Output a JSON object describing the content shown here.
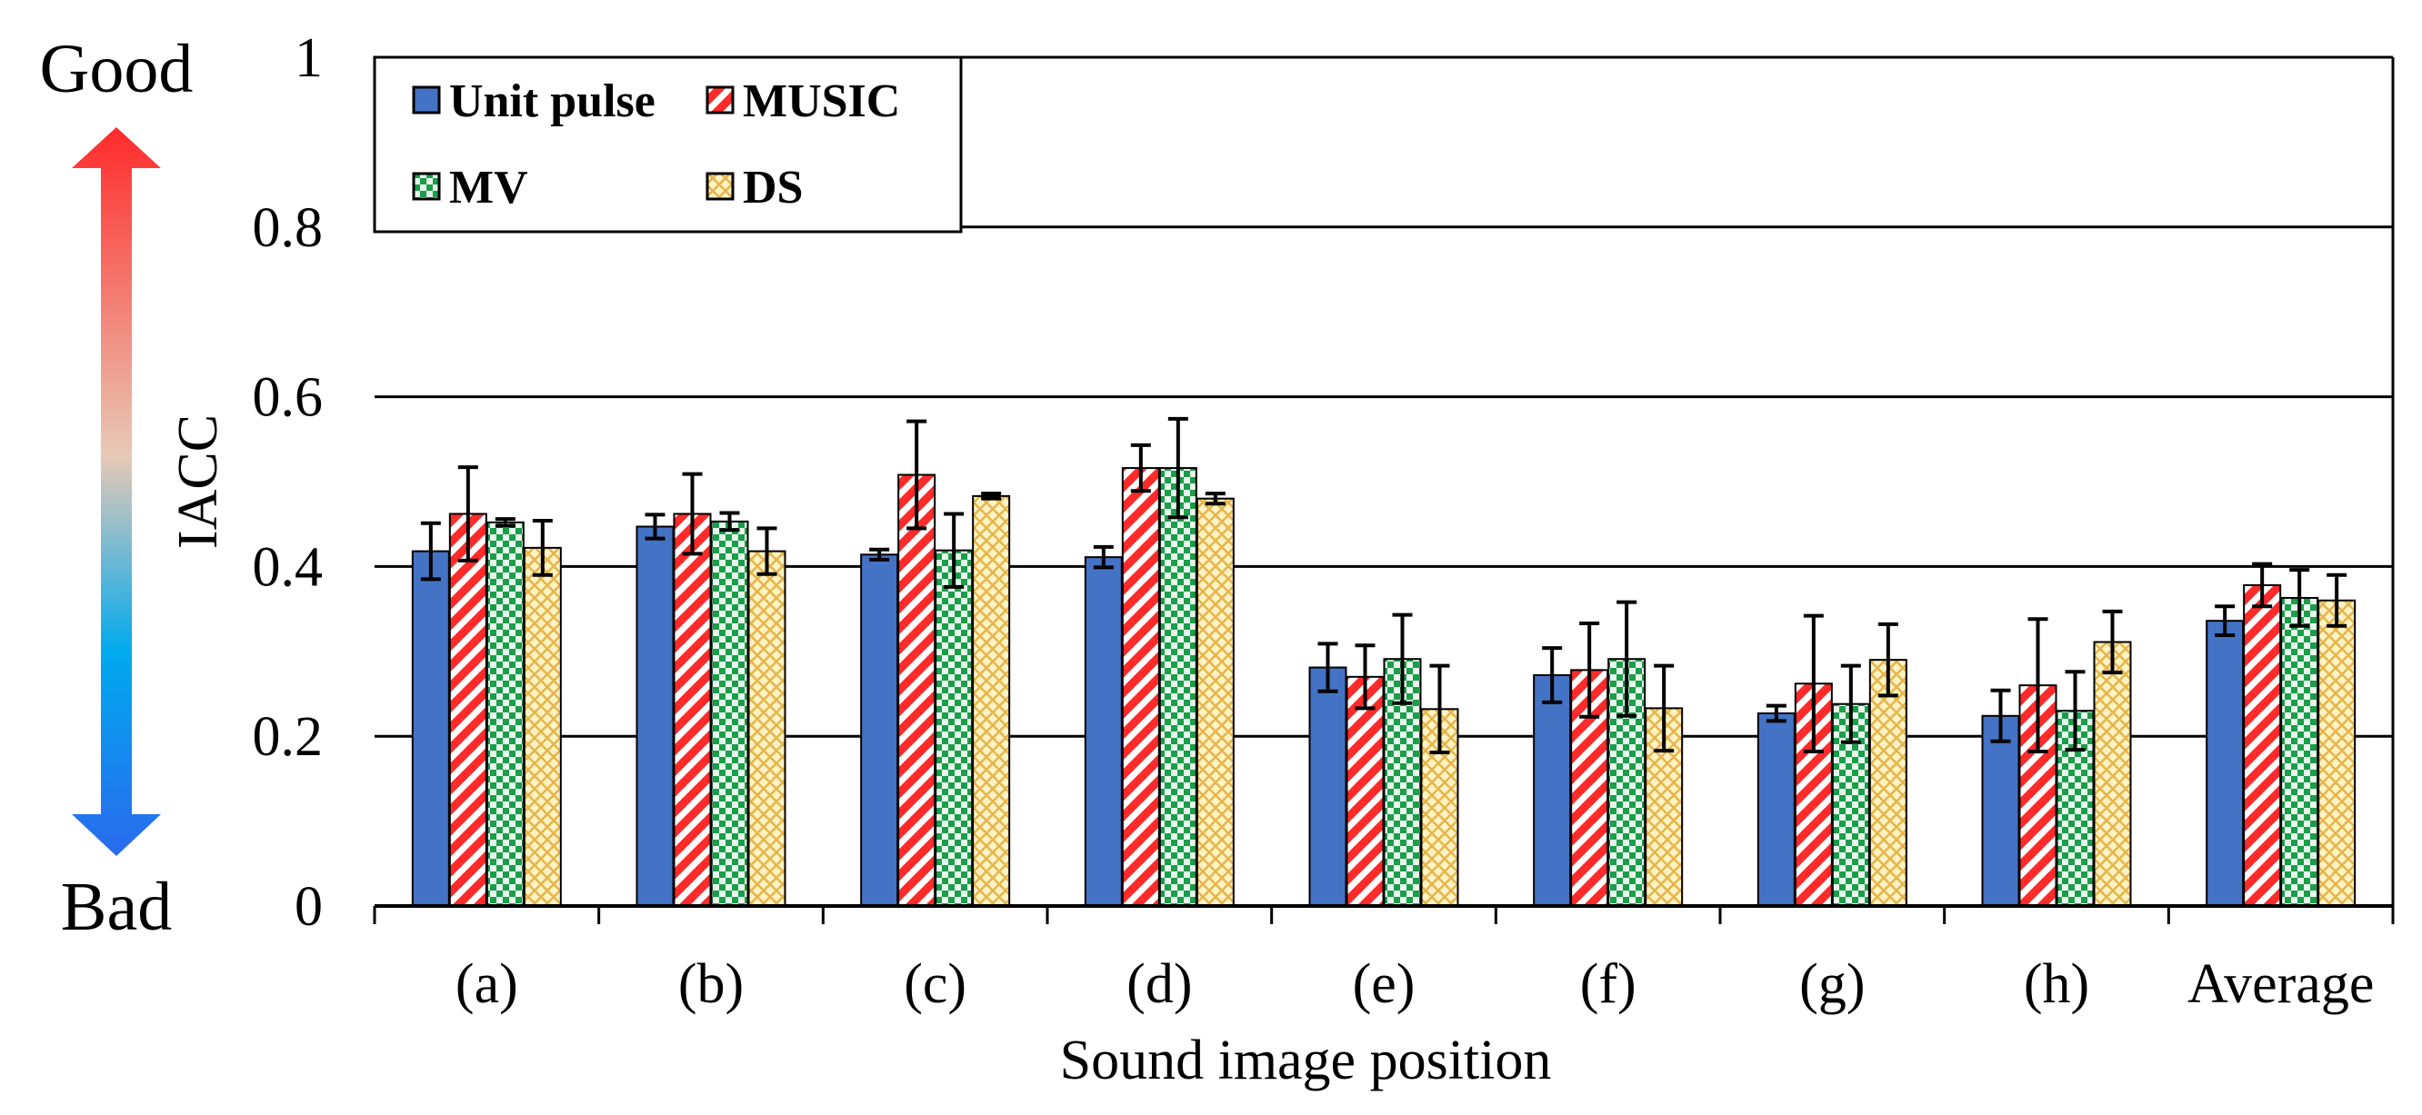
{
  "indicator": {
    "top_label": "Good",
    "bottom_label": "Bad",
    "colors": {
      "good": "#ff2a2a",
      "mid": "#e8c9b6",
      "low": "#00aaee",
      "bad": "#2a6aee"
    }
  },
  "legend_labels": [
    "Unit pulse",
    "MUSIC",
    "MV",
    "DS"
  ],
  "chart_data": {
    "type": "bar",
    "title": "",
    "xlabel": "Sound image position",
    "ylabel": "IACC",
    "ylim": [
      0,
      1
    ],
    "yticks": [
      0,
      0.2,
      0.4,
      0.6,
      0.8,
      1
    ],
    "ytick_labels": [
      "0",
      "0.2",
      "0.4",
      "0.6",
      "0.8",
      "1"
    ],
    "grid": true,
    "legend_position": "top-left",
    "categories": [
      "(a)",
      "(b)",
      "(c)",
      "(d)",
      "(e)",
      "(f)",
      "(g)",
      "(h)",
      "Average"
    ],
    "series": [
      {
        "name": "Unit pulse",
        "color": "#4472c4",
        "pattern": "solid",
        "values": [
          0.418,
          0.447,
          0.414,
          0.411,
          0.281,
          0.272,
          0.227,
          0.224,
          0.336
        ],
        "errors": [
          0.033,
          0.014,
          0.006,
          0.012,
          0.028,
          0.032,
          0.009,
          0.03,
          0.017
        ]
      },
      {
        "name": "MUSIC",
        "color": "#ff2a2a",
        "pattern": "diagonal-stripe",
        "values": [
          0.462,
          0.462,
          0.508,
          0.516,
          0.27,
          0.278,
          0.262,
          0.26,
          0.378
        ],
        "errors": [
          0.055,
          0.047,
          0.063,
          0.027,
          0.037,
          0.055,
          0.08,
          0.078,
          0.025
        ]
      },
      {
        "name": "MV",
        "color": "#1a9e4a",
        "pattern": "checker",
        "values": [
          0.452,
          0.453,
          0.419,
          0.516,
          0.291,
          0.291,
          0.238,
          0.23,
          0.363
        ],
        "errors": [
          0.004,
          0.01,
          0.043,
          0.058,
          0.052,
          0.067,
          0.045,
          0.046,
          0.033
        ]
      },
      {
        "name": "DS",
        "color": "#f2cf6a",
        "pattern": "crosshatch",
        "values": [
          0.422,
          0.418,
          0.483,
          0.48,
          0.232,
          0.233,
          0.29,
          0.311,
          0.36
        ],
        "errors": [
          0.032,
          0.027,
          0.003,
          0.006,
          0.051,
          0.05,
          0.042,
          0.036,
          0.03
        ]
      }
    ]
  }
}
